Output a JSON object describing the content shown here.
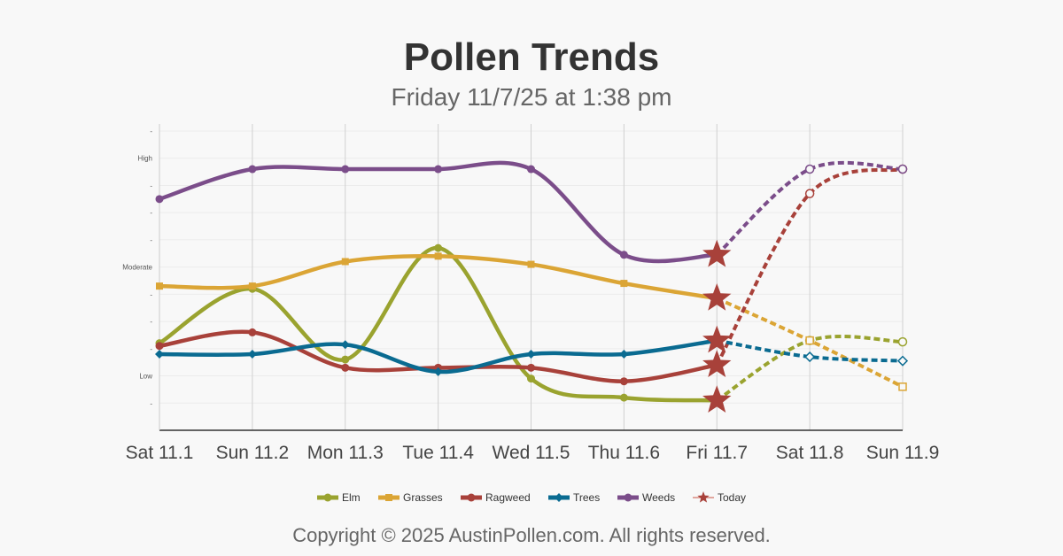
{
  "chart_data": {
    "type": "line",
    "title": "Pollen Trends",
    "subtitle": "Friday 11/7/25 at 1:38 pm",
    "categories": [
      "Sat 11.1",
      "Sun 11.2",
      "Mon 11.3",
      "Tue 11.4",
      "Wed 11.5",
      "Thu 11.6",
      "Fri 11.7",
      "Sat 11.8",
      "Sun 11.9"
    ],
    "today_index": 6,
    "ylim": [
      0,
      11
    ],
    "y_ticks": [
      {
        "value": 1,
        "label": "-"
      },
      {
        "value": 2,
        "label": "Low"
      },
      {
        "value": 3,
        "label": "-"
      },
      {
        "value": 4,
        "label": "-"
      },
      {
        "value": 5,
        "label": "-"
      },
      {
        "value": 6,
        "label": "Moderate"
      },
      {
        "value": 7,
        "label": "-"
      },
      {
        "value": 8,
        "label": "-"
      },
      {
        "value": 9,
        "label": "-"
      },
      {
        "value": 10,
        "label": "High"
      },
      {
        "value": 11,
        "label": "-"
      }
    ],
    "grid": true,
    "legend_position": "bottom",
    "series": [
      {
        "name": "Elm",
        "color": "#9aa32f",
        "marker": "circle",
        "values": [
          3.2,
          5.2,
          2.6,
          6.7,
          1.9,
          1.2,
          1.1,
          3.3,
          3.25
        ]
      },
      {
        "name": "Grasses",
        "color": "#dba535",
        "marker": "square",
        "values": [
          5.3,
          5.3,
          6.2,
          6.4,
          6.1,
          5.4,
          4.85,
          3.3,
          1.6
        ]
      },
      {
        "name": "Ragweed",
        "color": "#a8413a",
        "marker": "circle",
        "values": [
          3.1,
          3.6,
          2.3,
          2.3,
          2.3,
          1.8,
          2.4,
          8.7,
          9.6
        ]
      },
      {
        "name": "Trees",
        "color": "#0a6b91",
        "marker": "diamond",
        "values": [
          2.8,
          2.8,
          3.15,
          2.15,
          2.8,
          2.8,
          3.3,
          2.7,
          2.55
        ]
      },
      {
        "name": "Weeds",
        "color": "#7b4d8a",
        "marker": "circle",
        "values": [
          8.5,
          9.6,
          9.6,
          9.6,
          9.6,
          6.45,
          6.45,
          9.6,
          9.6
        ]
      }
    ],
    "today_legend": {
      "name": "Today",
      "color": "#a8413a",
      "marker": "star"
    }
  },
  "copyright": "Copyright © 2025 AustinPollen.com.  All rights reserved."
}
